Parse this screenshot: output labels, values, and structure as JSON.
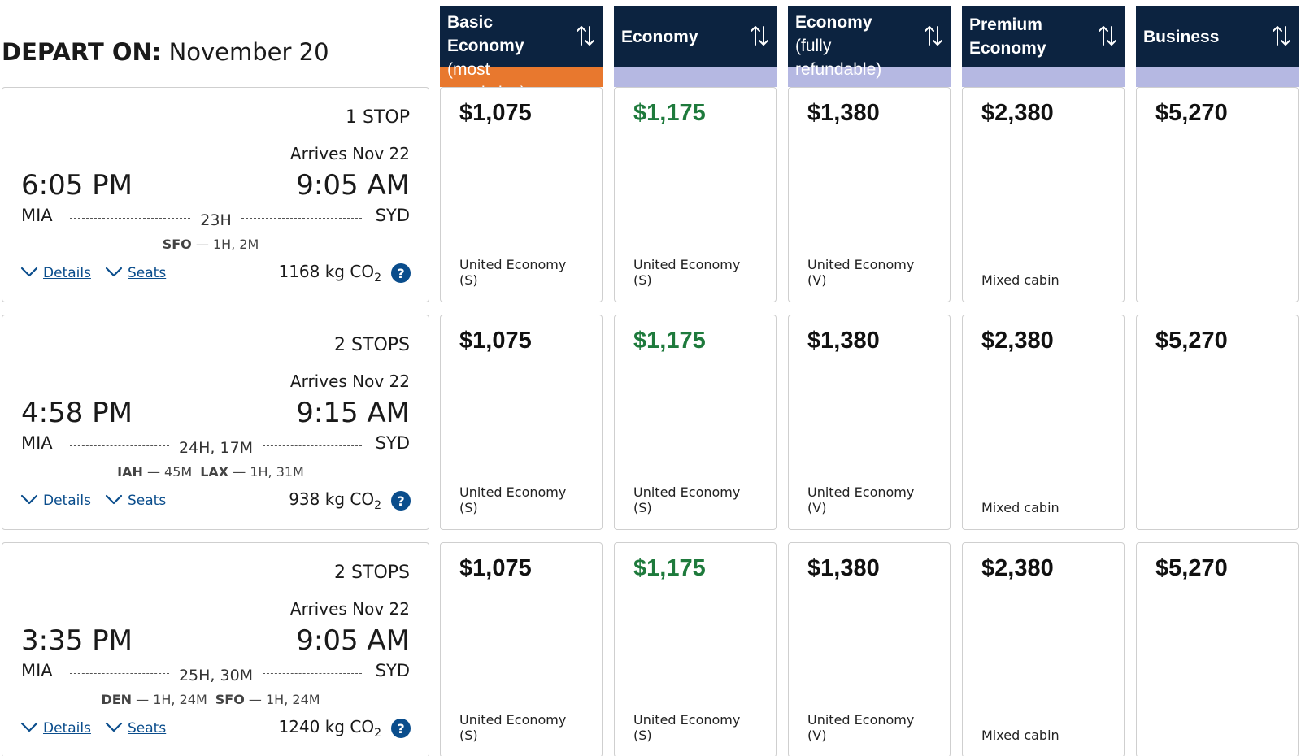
{
  "depart": {
    "label": "DEPART ON:",
    "date": "November 20"
  },
  "fare_columns": [
    {
      "name": "Basic Economy",
      "sub": "(most restrictive)",
      "accent": "#e8782e",
      "price_color": "#111111"
    },
    {
      "name": "Economy",
      "sub": "",
      "accent": "#b5b8e2",
      "price_color": "#1e7a3c"
    },
    {
      "name": "Economy",
      "sub": "(fully refundable)",
      "accent": "#b5b8e2",
      "price_color": "#111111"
    },
    {
      "name": "Premium Economy",
      "sub": "",
      "accent": "#b5b8e2",
      "price_color": "#111111"
    },
    {
      "name": "Business",
      "sub": "",
      "accent": "#b5b8e2",
      "price_color": "#111111"
    }
  ],
  "sort_icon": "sort-arrows-icon",
  "flights": [
    {
      "stops": "1 STOP",
      "arrives": "Arrives Nov 22",
      "depart_time": "6:05 PM",
      "arrive_time": "9:05 AM",
      "origin": "MIA",
      "destination": "SYD",
      "duration": "23H",
      "layovers": [
        {
          "airport": "SFO",
          "time": "1H, 2M"
        }
      ],
      "details_label": "Details",
      "seats_label": "Seats",
      "co2": "1168 kg CO",
      "co2_sub": "2",
      "help": "?",
      "fares": [
        {
          "price": "$1,075",
          "cabin": "United Economy",
          "code": "(S)"
        },
        {
          "price": "$1,175",
          "cabin": "United Economy",
          "code": "(S)"
        },
        {
          "price": "$1,380",
          "cabin": "United Economy",
          "code": "(V)"
        },
        {
          "price": "$2,380",
          "cabin": "Mixed cabin",
          "code": ""
        },
        {
          "price": "$5,270",
          "cabin": "",
          "code": ""
        }
      ]
    },
    {
      "stops": "2 STOPS",
      "arrives": "Arrives Nov 22",
      "depart_time": "4:58 PM",
      "arrive_time": "9:15 AM",
      "origin": "MIA",
      "destination": "SYD",
      "duration": "24H, 17M",
      "layovers": [
        {
          "airport": "IAH",
          "time": "45M"
        },
        {
          "airport": "LAX",
          "time": "1H, 31M"
        }
      ],
      "details_label": "Details",
      "seats_label": "Seats",
      "co2": "938 kg CO",
      "co2_sub": "2",
      "help": "?",
      "fares": [
        {
          "price": "$1,075",
          "cabin": "United Economy",
          "code": "(S)"
        },
        {
          "price": "$1,175",
          "cabin": "United Economy",
          "code": "(S)"
        },
        {
          "price": "$1,380",
          "cabin": "United Economy",
          "code": "(V)"
        },
        {
          "price": "$2,380",
          "cabin": "Mixed cabin",
          "code": ""
        },
        {
          "price": "$5,270",
          "cabin": "",
          "code": ""
        }
      ]
    },
    {
      "stops": "2 STOPS",
      "arrives": "Arrives Nov 22",
      "depart_time": "3:35 PM",
      "arrive_time": "9:05 AM",
      "origin": "MIA",
      "destination": "SYD",
      "duration": "25H, 30M",
      "layovers": [
        {
          "airport": "DEN",
          "time": "1H, 24M"
        },
        {
          "airport": "SFO",
          "time": "1H, 24M"
        }
      ],
      "details_label": "Details",
      "seats_label": "Seats",
      "co2": "1240 kg CO",
      "co2_sub": "2",
      "help": "?",
      "fares": [
        {
          "price": "$1,075",
          "cabin": "United Economy",
          "code": "(S)"
        },
        {
          "price": "$1,175",
          "cabin": "United Economy",
          "code": "(S)"
        },
        {
          "price": "$1,380",
          "cabin": "United Economy",
          "code": "(V)"
        },
        {
          "price": "$2,380",
          "cabin": "Mixed cabin",
          "code": ""
        },
        {
          "price": "$5,270",
          "cabin": "",
          "code": ""
        }
      ]
    }
  ]
}
